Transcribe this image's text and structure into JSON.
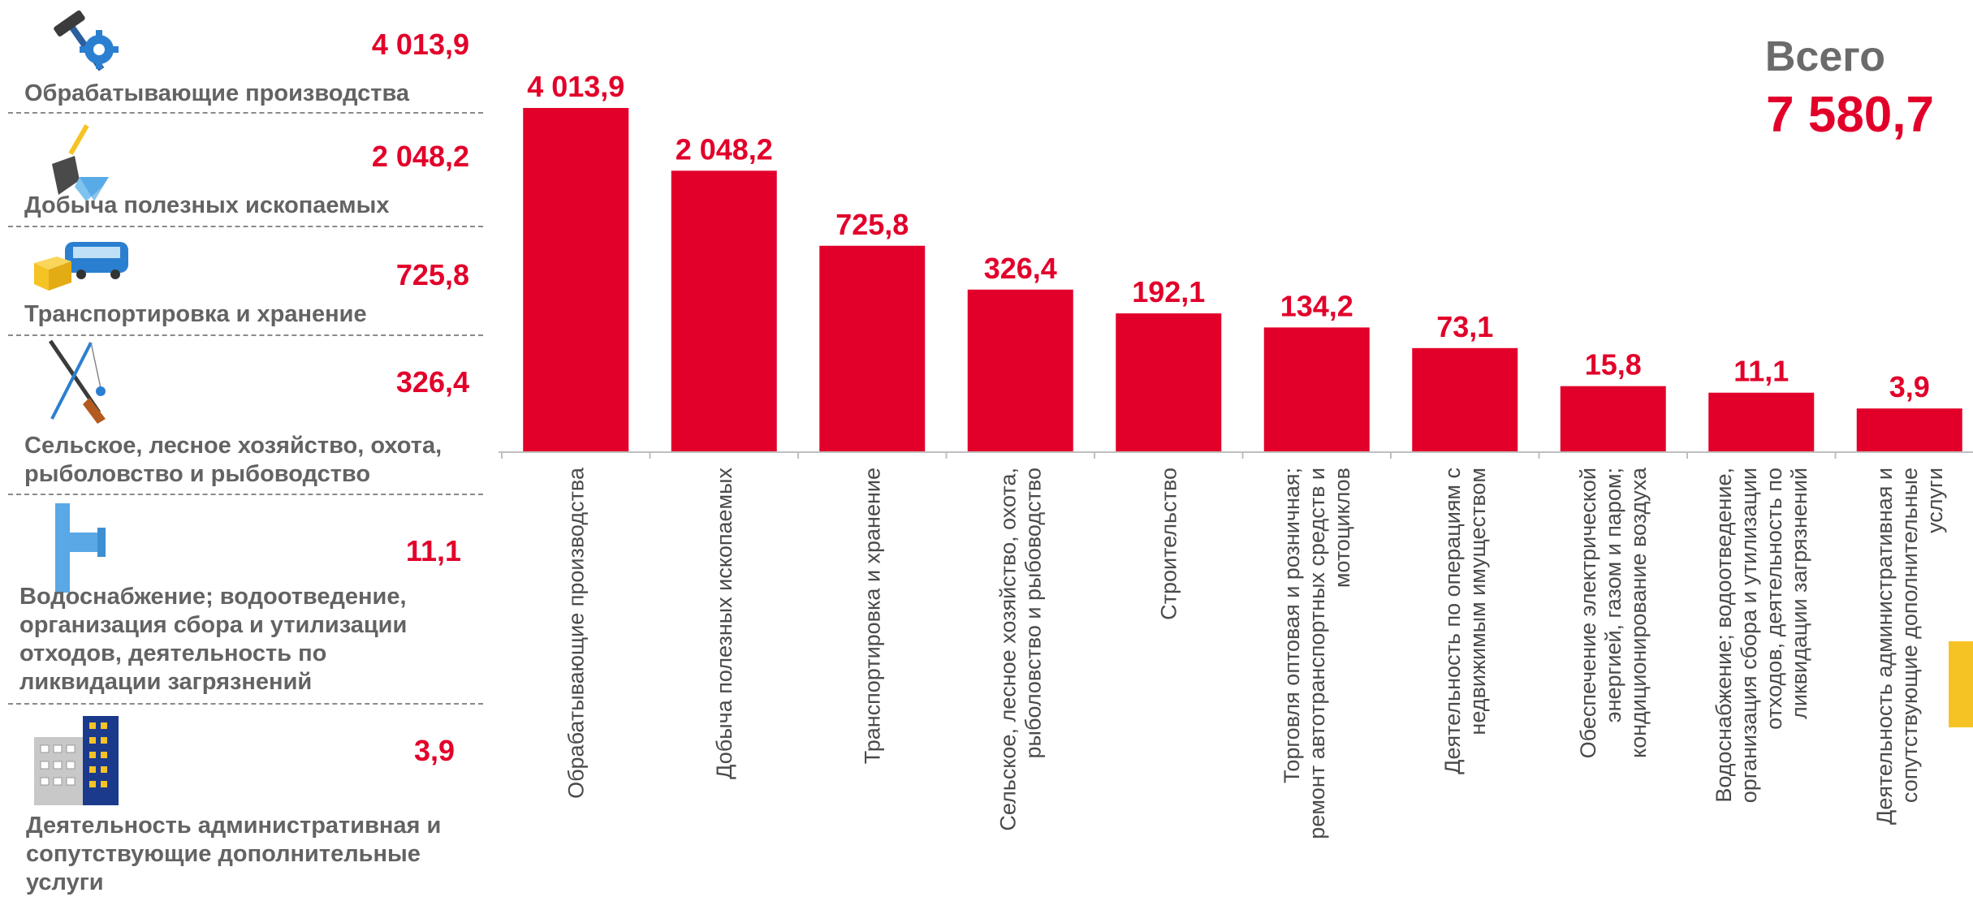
{
  "colors": {
    "bar": "#e2002a",
    "label_gray": "#636363",
    "total_gray": "#6b6b6b",
    "accent": "#f6c324"
  },
  "total": {
    "label": "Всего",
    "value": "7 580,7"
  },
  "sidebar": {
    "items": [
      {
        "icon": "hammer-gear-icon",
        "label": "Обрабатывающие производства",
        "value": "4 013,9"
      },
      {
        "icon": "shovel-diamond-icon",
        "label": "Добыча полезных ископаемых",
        "value": "2 048,2"
      },
      {
        "icon": "bus-box-icon",
        "label": "Транспортировка и хранение",
        "value": "725,8"
      },
      {
        "icon": "rifle-fishing-rod-icon",
        "label": "Сельское, лесное хозяйство, охота, рыболовство и рыбоводство",
        "value": "326,4"
      },
      {
        "icon": "water-pipe-icon",
        "label": "Водоснабжение; водоотведение, организация сбора и  утилизации отходов, деятельность по ликвидации загрязнений",
        "value": "11,1"
      },
      {
        "icon": "office-building-icon",
        "label": "Деятельность административная и сопутствующие дополнительные услуги",
        "value": "3,9"
      }
    ]
  },
  "chart_data": {
    "type": "bar",
    "categories": [
      "Обрабатывающие производства",
      "Добыча полезных ископаемых",
      "Транспортировка и хранение",
      "Сельское, лесное хозяйство, охота, рыболовство и рыбоводство",
      "Строительство",
      "Торговля оптовая и розничная; ремонт автотранспортных средств и мотоциклов",
      "Деятельность по операциям с недвижимым имуществом",
      "Обеспечение электрической энергией, газом и паром; кондиционирование воздуха",
      "Водоснабжение; водоотведение, организация сбора и утилизации отходов, деятельность по ликвидации загрязнений",
      "Деятельность административная и сопутствующие дополнительные услуги"
    ],
    "values": [
      4013.9,
      2048.2,
      725.8,
      326.4,
      192.1,
      134.2,
      73.1,
      15.8,
      11.1,
      3.9
    ],
    "value_labels": [
      "4 013,9",
      "2 048,2",
      "725,8",
      "326,4",
      "192,1",
      "134,2",
      "73,1",
      "15,8",
      "11,1",
      "3,9"
    ],
    "scale": "nonlinear (display)",
    "title": "",
    "xlabel": "",
    "ylabel": ""
  }
}
